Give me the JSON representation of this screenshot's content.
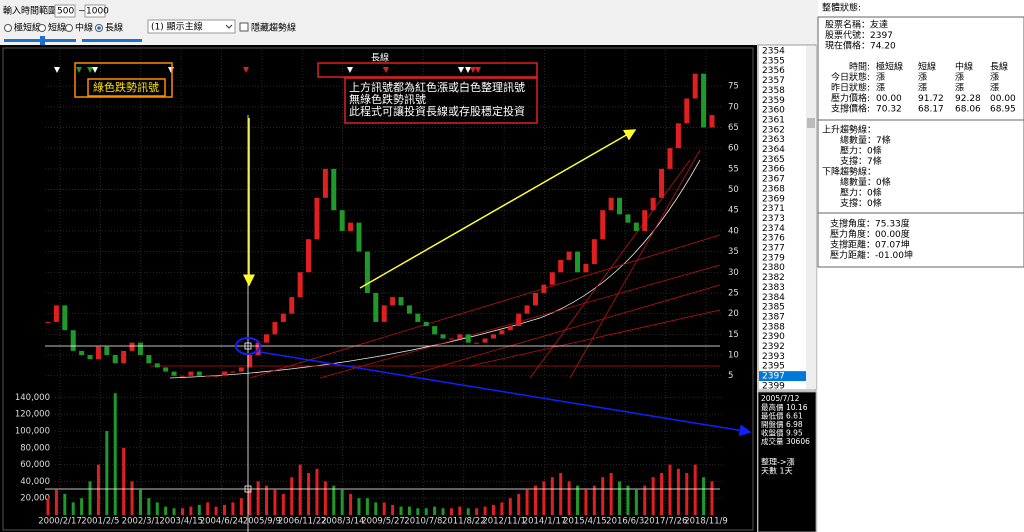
{
  "toolbar": {
    "range_label": "輸入時間範圍:",
    "range_from": "500",
    "range_sep": "~",
    "range_to": "1000",
    "modes": [
      "極短線",
      "短線",
      "中線",
      "長線"
    ],
    "selected_mode": "長線",
    "dropdown": "(1) 顯示主線",
    "checkbox": "隱藏趨勢線"
  },
  "chart_data": {
    "type": "candlestick",
    "up_color": "#e02020",
    "down_color": "#1f9a2a",
    "grid": true,
    "x_labels": [
      "2000/2/17",
      "2001/2/5",
      "2002/3/1",
      "2003/4/15",
      "2004/6/24",
      "2005/9/9",
      "2006/11/22",
      "2008/3/14",
      "2009/5/27",
      "2010/7/8",
      "2011/8/22",
      "2012/11/1",
      "2014/1/17",
      "2015/4/15",
      "2016/6/3",
      "2017/7/26",
      "2018/11/9"
    ],
    "values": [
      18,
      22,
      16,
      11,
      10,
      9,
      12,
      10,
      8,
      11,
      13,
      10,
      8,
      7,
      6,
      5,
      5,
      6,
      5,
      5,
      5,
      6,
      6,
      7,
      10,
      13,
      15,
      18,
      20,
      24,
      30,
      38,
      48,
      55,
      45,
      40,
      42,
      35,
      25,
      18,
      22,
      24,
      22,
      20,
      18,
      17,
      15,
      14,
      14,
      15,
      13,
      13,
      14,
      15,
      16,
      17,
      20,
      22,
      25,
      27,
      30,
      33,
      35,
      30,
      32,
      38,
      45,
      48,
      44,
      42,
      40,
      45,
      48,
      55,
      60,
      66,
      72,
      78,
      65,
      68
    ],
    "ylim": [
      3,
      83
    ],
    "yticks": [
      5,
      10,
      15,
      20,
      25,
      30,
      35,
      40,
      45,
      50,
      55,
      60,
      65,
      70,
      75
    ],
    "volume_values": [
      20000,
      30000,
      25000,
      15000,
      20000,
      40000,
      60000,
      100000,
      145000,
      80000,
      40000,
      30000,
      20000,
      15000,
      10000,
      8000,
      8000,
      10000,
      12000,
      15000,
      10000,
      12000,
      15000,
      20000,
      30606,
      40000,
      35000,
      30000,
      25000,
      45000,
      60000,
      50000,
      55000,
      40000,
      35000,
      30000,
      25000,
      20000,
      20000,
      15000,
      15000,
      12000,
      10000,
      10000,
      8000,
      8000,
      10000,
      8000,
      8000,
      10000,
      8000,
      8000,
      10000,
      12000,
      15000,
      20000,
      25000,
      30000,
      35000,
      40000,
      45000,
      50000,
      40000,
      35000,
      30000,
      35000,
      45000,
      50000,
      40000,
      35000,
      30000,
      35000,
      45000,
      50000,
      60000,
      55000,
      50000,
      60000,
      45000,
      40000
    ],
    "volume_ylim": [
      0,
      150000
    ],
    "volume_yticks": [
      {
        "value": 20000,
        "label": "20,000"
      },
      {
        "value": 40000,
        "label": "40,000"
      },
      {
        "value": 60000,
        "label": "60,000"
      },
      {
        "value": 80000,
        "label": "80,000"
      },
      {
        "value": 100000,
        "label": "100,000"
      },
      {
        "value": 120000,
        "label": "120,000"
      },
      {
        "value": 140000,
        "label": "140,000"
      }
    ]
  },
  "annotations": {
    "signal_label": "長線",
    "green_signal": "綠色跌勢訊號",
    "note": [
      "上方訊號都為紅色漲或白色整理訊號",
      "無綠色跌勢訊號",
      "此程式可讓投資長線或存股穩定投資"
    ]
  },
  "symbol_list": {
    "items": [
      "2354",
      "2355",
      "2356",
      "2357",
      "2358",
      "2359",
      "2360",
      "2361",
      "2362",
      "2363",
      "2364",
      "2365",
      "2366",
      "2367",
      "2368",
      "2369",
      "2371",
      "2373",
      "2374",
      "2376",
      "2377",
      "2379",
      "2380",
      "2382",
      "2383",
      "2384",
      "2385",
      "2387",
      "2388",
      "2390",
      "2392",
      "2393",
      "2395",
      "2397",
      "2399"
    ],
    "selected": "2397"
  },
  "day_info": {
    "date": "2005/7/12",
    "rows": [
      {
        "label": "最高價",
        "value": "10.16"
      },
      {
        "label": "最低價",
        "value": "6.61"
      },
      {
        "label": "開盤價",
        "value": "6.98"
      },
      {
        "label": "收盤價",
        "value": "9.95"
      },
      {
        "label": "成交量",
        "value": "30606"
      }
    ],
    "trend": "整理->漲",
    "days": "天數 1天"
  },
  "status": {
    "title": "整體狀態:",
    "stock": [
      {
        "label": "股票名稱：",
        "value": "友達"
      },
      {
        "label": "股票代號：",
        "value": "2397"
      },
      {
        "label": "現在價格：",
        "value": "74.20"
      }
    ],
    "table_header": "時間:",
    "columns": [
      "極短線",
      "短線",
      "中線",
      "長線"
    ],
    "table_rows": [
      {
        "label": "今日狀態:",
        "values": [
          "漲",
          "漲",
          "漲",
          "漲"
        ]
      },
      {
        "label": "昨日狀態:",
        "values": [
          "漲",
          "漲",
          "漲",
          "漲"
        ]
      },
      {
        "label": "壓力價格:",
        "values": [
          "00.00",
          "91.72",
          "92.28",
          "00.00"
        ]
      },
      {
        "label": "支撐價格:",
        "values": [
          "70.32",
          "68.17",
          "68.06",
          "68.95"
        ]
      }
    ],
    "up_trend": {
      "title": "上升趨勢線：",
      "items": [
        "總數量：7條",
        "壓力：0條",
        "支撐：7條"
      ]
    },
    "down_trend": {
      "title": "下降趨勢線：",
      "items": [
        "總數量：0條",
        "壓力：0條",
        "支撐：0條"
      ]
    },
    "angles": [
      "支撐角度：75.33度",
      "壓力角度：00.00度",
      "支撐距離：07.07坤",
      "壓力距離：-01.00坤"
    ]
  }
}
